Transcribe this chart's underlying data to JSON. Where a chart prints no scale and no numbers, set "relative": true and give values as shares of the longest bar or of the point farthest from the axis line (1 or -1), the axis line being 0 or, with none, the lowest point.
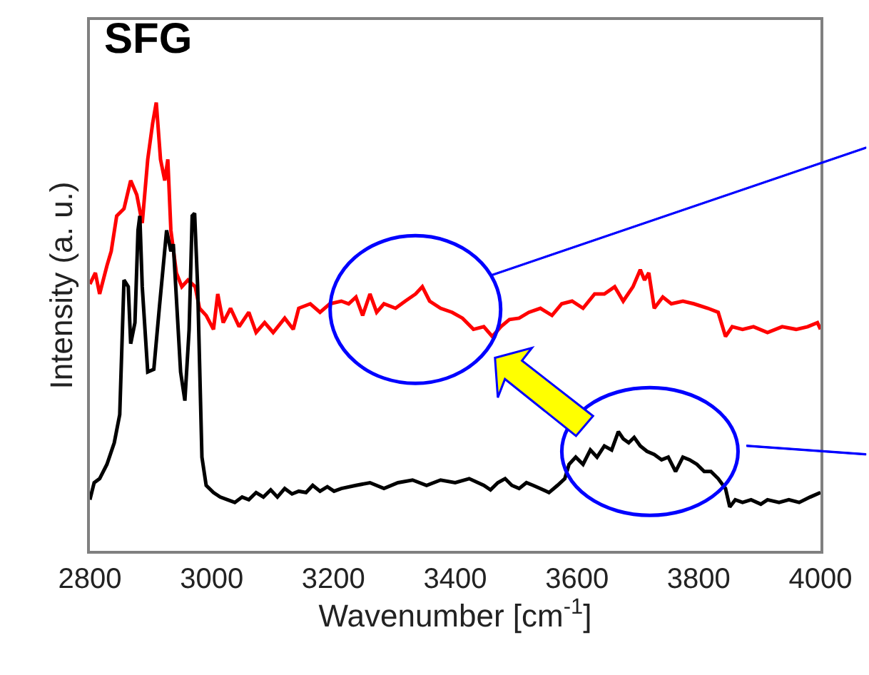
{
  "chart_data": {
    "type": "line",
    "title": "SFG",
    "xlabel": "Wavenumber [cm$^{-1}$]",
    "ylabel": "Intensity (a. u.)",
    "relative": true,
    "xlim": [
      2800,
      4000
    ],
    "xticks": [
      2800,
      3000,
      3200,
      3400,
      3600,
      3800,
      4000
    ],
    "marker": "none",
    "line_style": "solid",
    "series": [
      {
        "color": "#ff0000",
        "x": [
          2800,
          2809,
          2816,
          2828,
          2835,
          2844,
          2856,
          2867,
          2877,
          2886,
          2895,
          2903,
          2909,
          2916,
          2923,
          2928,
          2933,
          2942,
          2951,
          2961,
          2973,
          2980,
          2991,
          3003,
          3010,
          3019,
          3031,
          3045,
          3061,
          3073,
          3087,
          3101,
          3120,
          3134,
          3143,
          3162,
          3178,
          3194,
          3213,
          3225,
          3237,
          3248,
          3260,
          3271,
          3283,
          3302,
          3318,
          3335,
          3346,
          3358,
          3376,
          3395,
          3412,
          3430,
          3447,
          3461,
          3475,
          3489,
          3505,
          3521,
          3540,
          3559,
          3575,
          3592,
          3610,
          3629,
          3645,
          3662,
          3676,
          3692,
          3704,
          3711,
          3718,
          3727,
          3741,
          3755,
          3774,
          3792,
          3815,
          3832,
          3844,
          3855,
          3872,
          3890,
          3913,
          3937,
          3960,
          3979,
          3995,
          4000
        ],
        "values": [
          0.595,
          0.62,
          0.573,
          0.636,
          0.668,
          0.747,
          0.763,
          0.826,
          0.794,
          0.731,
          0.873,
          0.953,
          1,
          0.873,
          0.826,
          0.873,
          0.715,
          0.62,
          0.589,
          0.604,
          0.589,
          0.541,
          0.525,
          0.494,
          0.573,
          0.509,
          0.541,
          0.5,
          0.532,
          0.487,
          0.509,
          0.487,
          0.519,
          0.494,
          0.541,
          0.551,
          0.532,
          0.551,
          0.557,
          0.551,
          0.566,
          0.525,
          0.573,
          0.532,
          0.551,
          0.541,
          0.557,
          0.573,
          0.589,
          0.557,
          0.541,
          0.532,
          0.519,
          0.494,
          0.5,
          0.478,
          0.5,
          0.516,
          0.519,
          0.532,
          0.541,
          0.525,
          0.551,
          0.557,
          0.541,
          0.573,
          0.573,
          0.589,
          0.557,
          0.589,
          0.627,
          0.604,
          0.62,
          0.541,
          0.566,
          0.551,
          0.557,
          0.551,
          0.541,
          0.532,
          0.478,
          0.5,
          0.494,
          0.5,
          0.487,
          0.5,
          0.494,
          0.5,
          0.509,
          0.494
        ]
      },
      {
        "color": "#000000",
        "x": [
          2800,
          2807,
          2816,
          2828,
          2840,
          2849,
          2856,
          2863,
          2867,
          2874,
          2879,
          2882,
          2886,
          2895,
          2905,
          2914,
          2926,
          2933,
          2937,
          2949,
          2956,
          2963,
          2968,
          2972,
          2977,
          2984,
          2991,
          3003,
          3014,
          3026,
          3038,
          3050,
          3061,
          3073,
          3085,
          3097,
          3108,
          3120,
          3132,
          3143,
          3155,
          3166,
          3178,
          3190,
          3201,
          3213,
          3237,
          3260,
          3283,
          3306,
          3330,
          3353,
          3376,
          3400,
          3423,
          3447,
          3458,
          3470,
          3482,
          3493,
          3505,
          3517,
          3528,
          3540,
          3554,
          3568,
          3580,
          3587,
          3598,
          3610,
          3622,
          3633,
          3645,
          3657,
          3668,
          3676,
          3685,
          3694,
          3704,
          3715,
          3727,
          3739,
          3750,
          3762,
          3774,
          3785,
          3797,
          3809,
          3820,
          3832,
          3844,
          3851,
          3860,
          3872,
          3886,
          3902,
          3913,
          3932,
          3948,
          3965,
          3983,
          4000
        ],
        "values": [
          0.114,
          0.152,
          0.161,
          0.193,
          0.241,
          0.304,
          0.604,
          0.589,
          0.462,
          0.509,
          0.715,
          0.747,
          0.589,
          0.399,
          0.405,
          0.541,
          0.715,
          0.668,
          0.684,
          0.399,
          0.335,
          0.494,
          0.747,
          0.753,
          0.589,
          0.209,
          0.146,
          0.13,
          0.12,
          0.114,
          0.108,
          0.12,
          0.114,
          0.13,
          0.12,
          0.136,
          0.12,
          0.139,
          0.127,
          0.133,
          0.13,
          0.146,
          0.133,
          0.143,
          0.133,
          0.139,
          0.146,
          0.152,
          0.139,
          0.152,
          0.158,
          0.146,
          0.158,
          0.152,
          0.161,
          0.146,
          0.136,
          0.152,
          0.161,
          0.146,
          0.139,
          0.152,
          0.146,
          0.139,
          0.13,
          0.146,
          0.161,
          0.193,
          0.209,
          0.193,
          0.225,
          0.209,
          0.234,
          0.225,
          0.266,
          0.25,
          0.241,
          0.253,
          0.234,
          0.222,
          0.215,
          0.203,
          0.209,
          0.177,
          0.209,
          0.203,
          0.193,
          0.177,
          0.177,
          0.161,
          0.139,
          0.098,
          0.114,
          0.108,
          0.114,
          0.104,
          0.114,
          0.108,
          0.114,
          0.108,
          0.12,
          0.13
        ]
      }
    ]
  }
}
